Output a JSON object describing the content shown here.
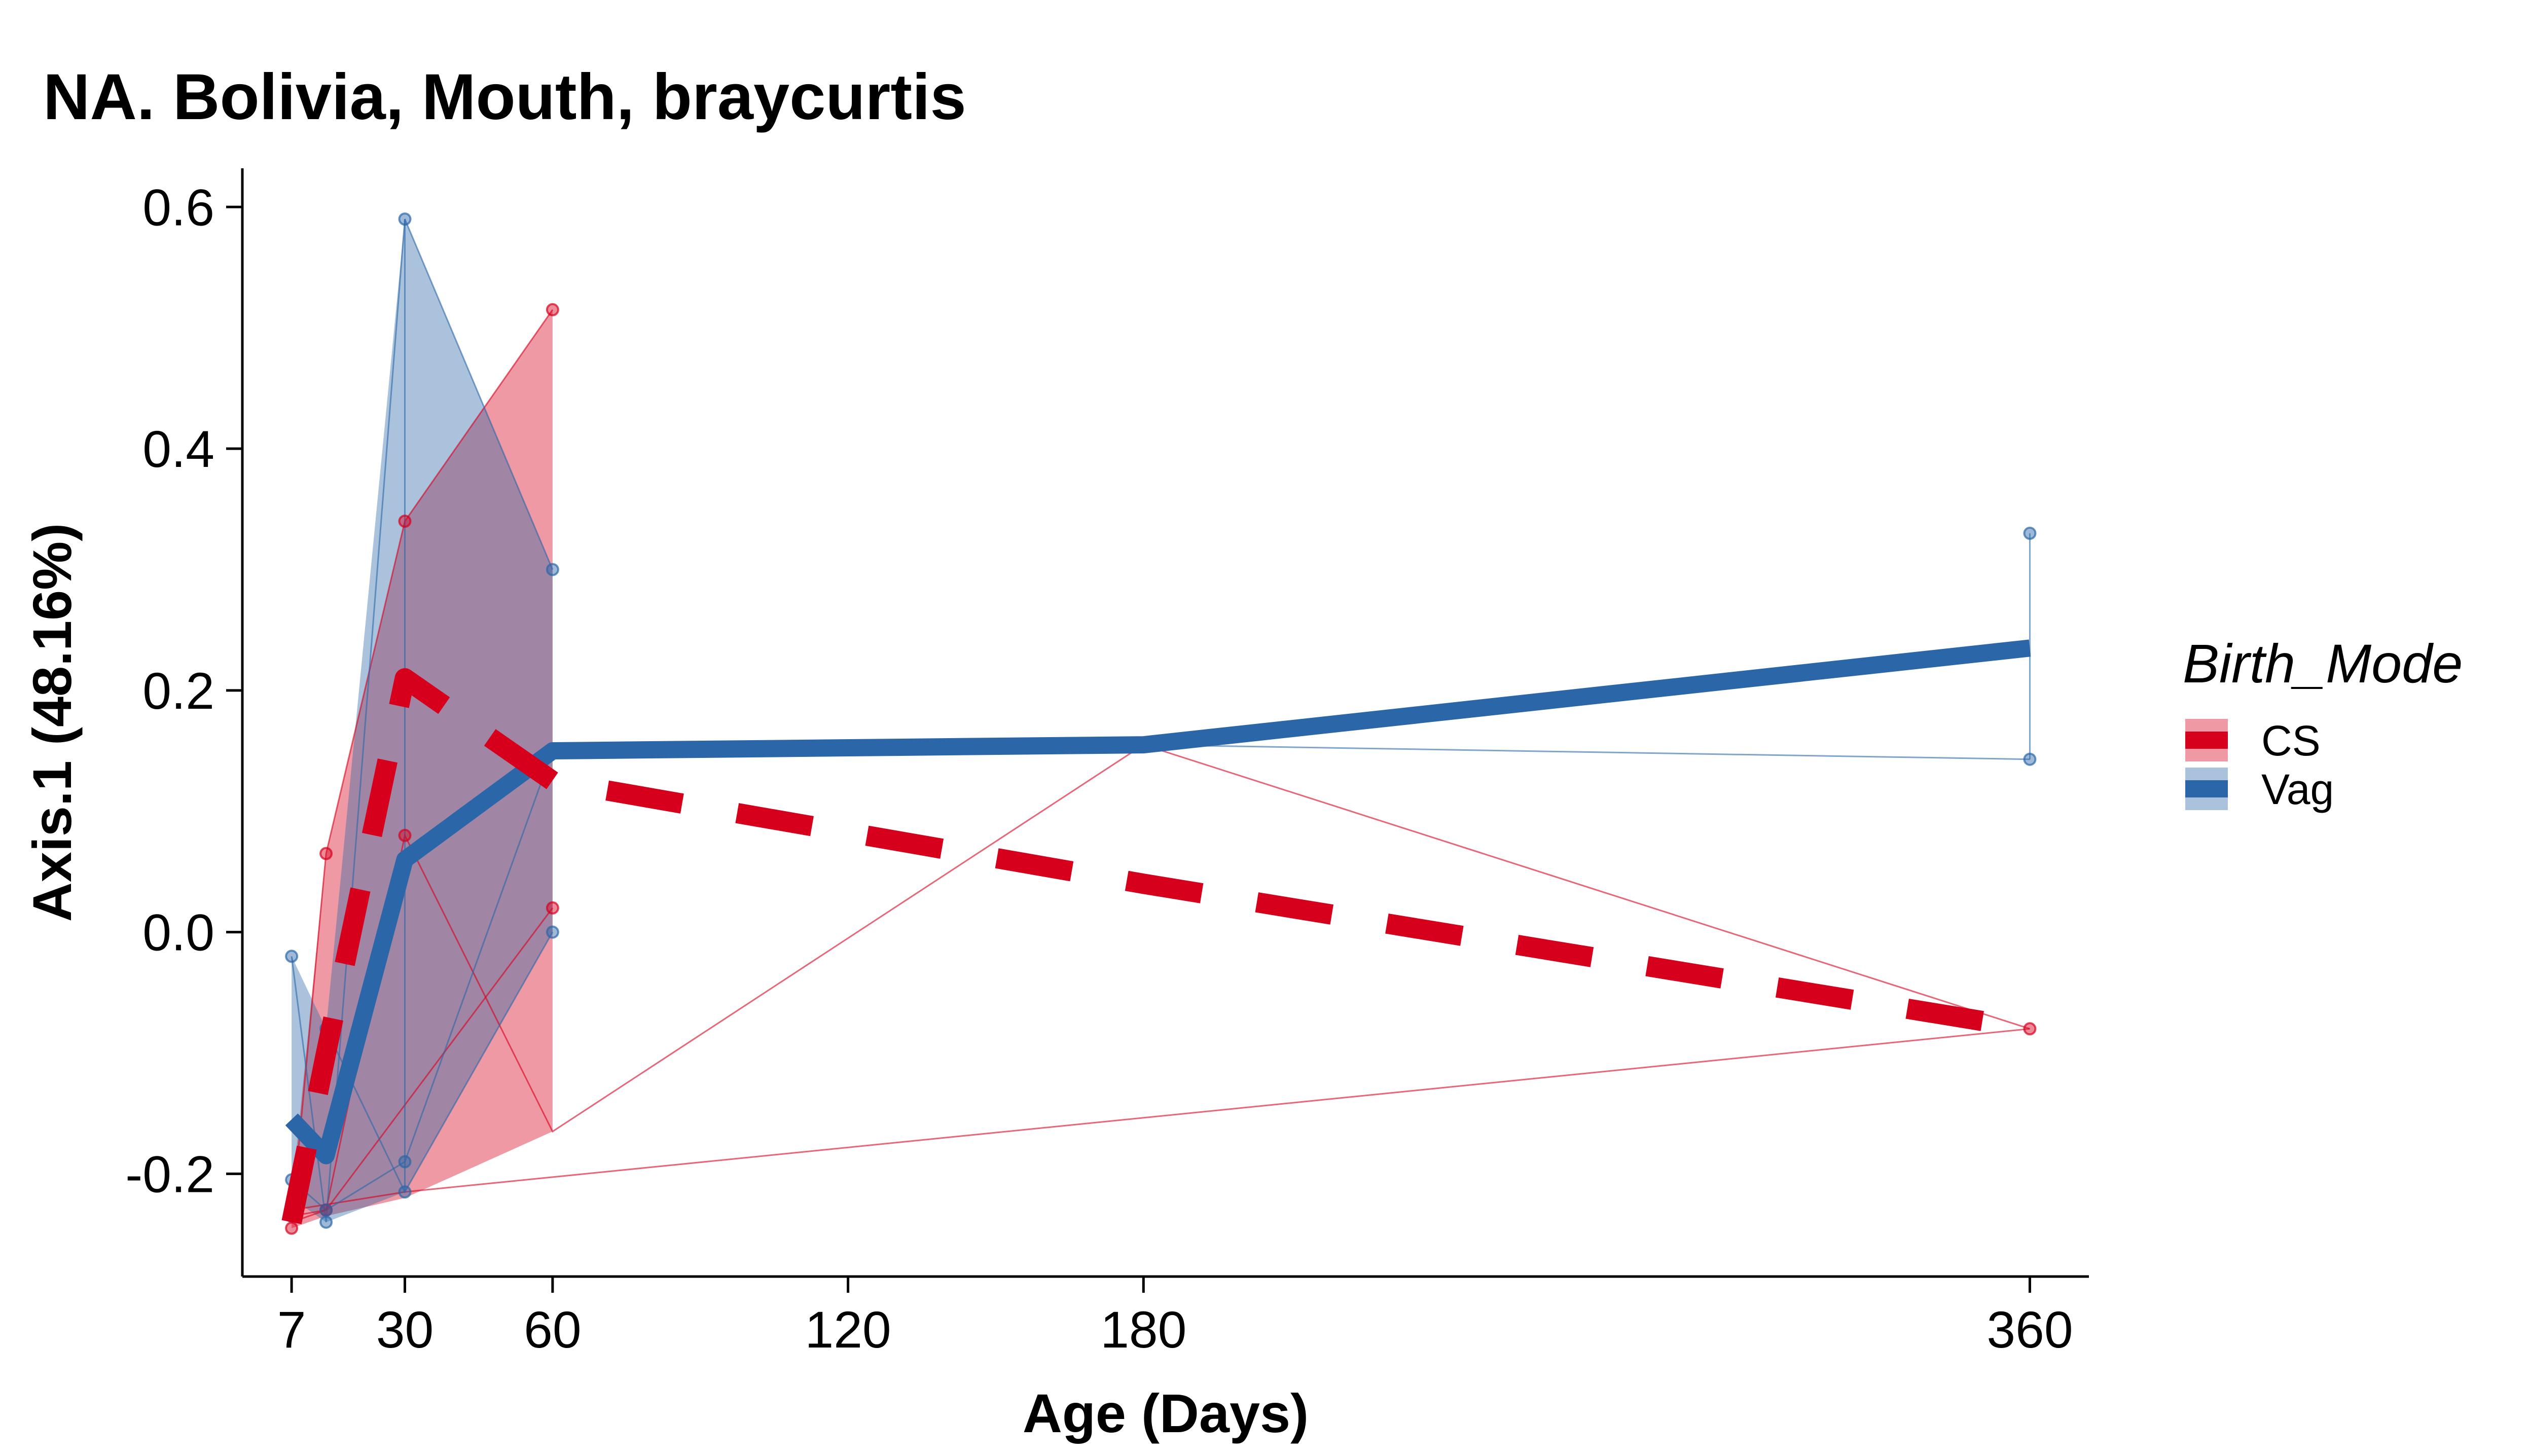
{
  "chart_data": {
    "type": "line",
    "title": "NA. Bolivia, Mouth, braycurtis",
    "xlabel": "Age (Days)",
    "ylabel": "Axis.1 (48.16%)",
    "xlim": [
      -3,
      372
    ],
    "ylim": [
      -0.285,
      0.632
    ],
    "x_ticks": [
      7,
      30,
      60,
      120,
      180,
      360
    ],
    "x_tick_labels": [
      "7",
      "30",
      "60",
      "120",
      "180",
      "360"
    ],
    "y_ticks": [
      -0.2,
      0,
      0.2,
      0.4,
      0.6
    ],
    "y_tick_labels": [
      "-0.2",
      "0.0",
      "0.2",
      "0.4",
      "0.6"
    ],
    "grid": false,
    "legend": {
      "title": "Birth_Mode",
      "position": "right"
    },
    "series": [
      {
        "name": "CS",
        "color": "#D7001C",
        "line_style": "dashed",
        "mean": {
          "x": [
            7,
            14,
            30,
            60,
            180,
            360
          ],
          "y": [
            -0.24,
            -0.1,
            0.21,
            0.125,
            0.04,
            -0.08
          ]
        },
        "ribbon": {
          "x": [
            7,
            14,
            30,
            60
          ],
          "ymin": [
            -0.245,
            -0.235,
            -0.22,
            -0.165
          ],
          "ymax": [
            -0.22,
            0.065,
            0.34,
            0.515
          ]
        },
        "points": {
          "x": [
            7,
            7,
            14,
            14,
            30,
            30,
            60,
            60,
            360
          ],
          "y": [
            -0.245,
            -0.235,
            0.065,
            -0.23,
            0.34,
            0.08,
            0.515,
            0.02,
            -0.08
          ]
        },
        "subjects": [
          {
            "x": [
              7,
              14,
              30,
              60
            ],
            "y": [
              -0.24,
              0.065,
              0.34,
              0.515
            ]
          },
          {
            "x": [
              7,
              14,
              30,
              60,
              180,
              360
            ],
            "y": [
              -0.235,
              -0.23,
              0.08,
              -0.165,
              0.155,
              -0.08
            ]
          },
          {
            "x": [
              7,
              14,
              60
            ],
            "y": [
              -0.24,
              -0.23,
              0.02
            ]
          },
          {
            "x": [
              7,
              30,
              360
            ],
            "y": [
              -0.23,
              -0.215,
              -0.08
            ]
          }
        ]
      },
      {
        "name": "Vag",
        "color": "#2B67A8",
        "line_style": "solid",
        "mean": {
          "x": [
            7,
            14,
            30,
            60,
            180,
            360
          ],
          "y": [
            -0.155,
            -0.185,
            0.06,
            0.15,
            0.155,
            0.235
          ]
        },
        "ribbon": {
          "x": [
            7,
            14,
            30,
            60
          ],
          "ymin": [
            -0.22,
            -0.24,
            -0.215,
            0
          ],
          "ymax": [
            -0.02,
            -0.08,
            0.59,
            0.3
          ]
        },
        "points": {
          "x": [
            7,
            7,
            14,
            14,
            14,
            30,
            30,
            30,
            60,
            60,
            360,
            360
          ],
          "y": [
            -0.02,
            -0.205,
            -0.24,
            -0.23,
            -0.08,
            0.59,
            -0.19,
            -0.215,
            0.3,
            0,
            0.33,
            0.143
          ]
        },
        "subjects": [
          {
            "x": [
              7,
              14,
              30,
              60
            ],
            "y": [
              -0.02,
              -0.24,
              0.59,
              0.3
            ]
          },
          {
            "x": [
              7,
              14,
              30,
              60,
              180,
              360
            ],
            "y": [
              -0.205,
              -0.23,
              -0.19,
              0.15,
              0.155,
              0.143
            ]
          },
          {
            "x": [
              14,
              30,
              60
            ],
            "y": [
              -0.08,
              -0.215,
              0
            ]
          },
          {
            "x": [
              30,
              30
            ],
            "y": [
              0.59,
              -0.215
            ]
          },
          {
            "x": [
              360,
              360
            ],
            "y": [
              0.33,
              0.143
            ]
          }
        ]
      }
    ]
  }
}
